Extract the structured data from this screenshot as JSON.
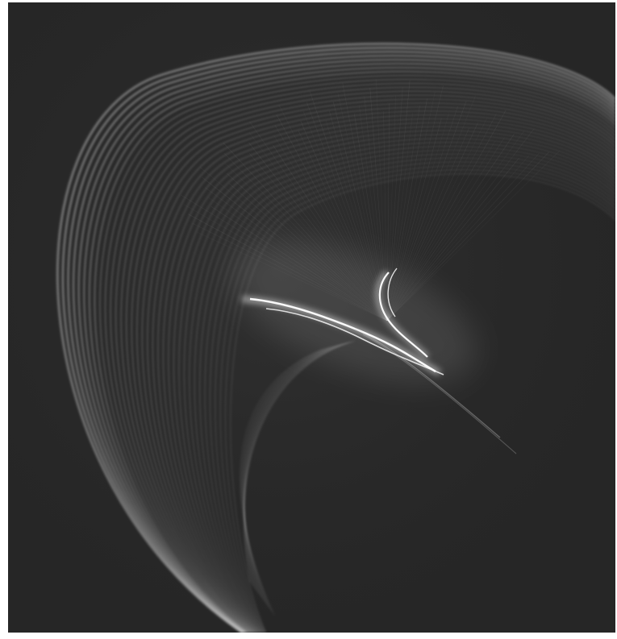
{
  "image": {
    "subject": "caustic-interference-pattern",
    "background_color": "#262626",
    "frame_color": "#ffffff",
    "glow_color": "#ffffff"
  }
}
